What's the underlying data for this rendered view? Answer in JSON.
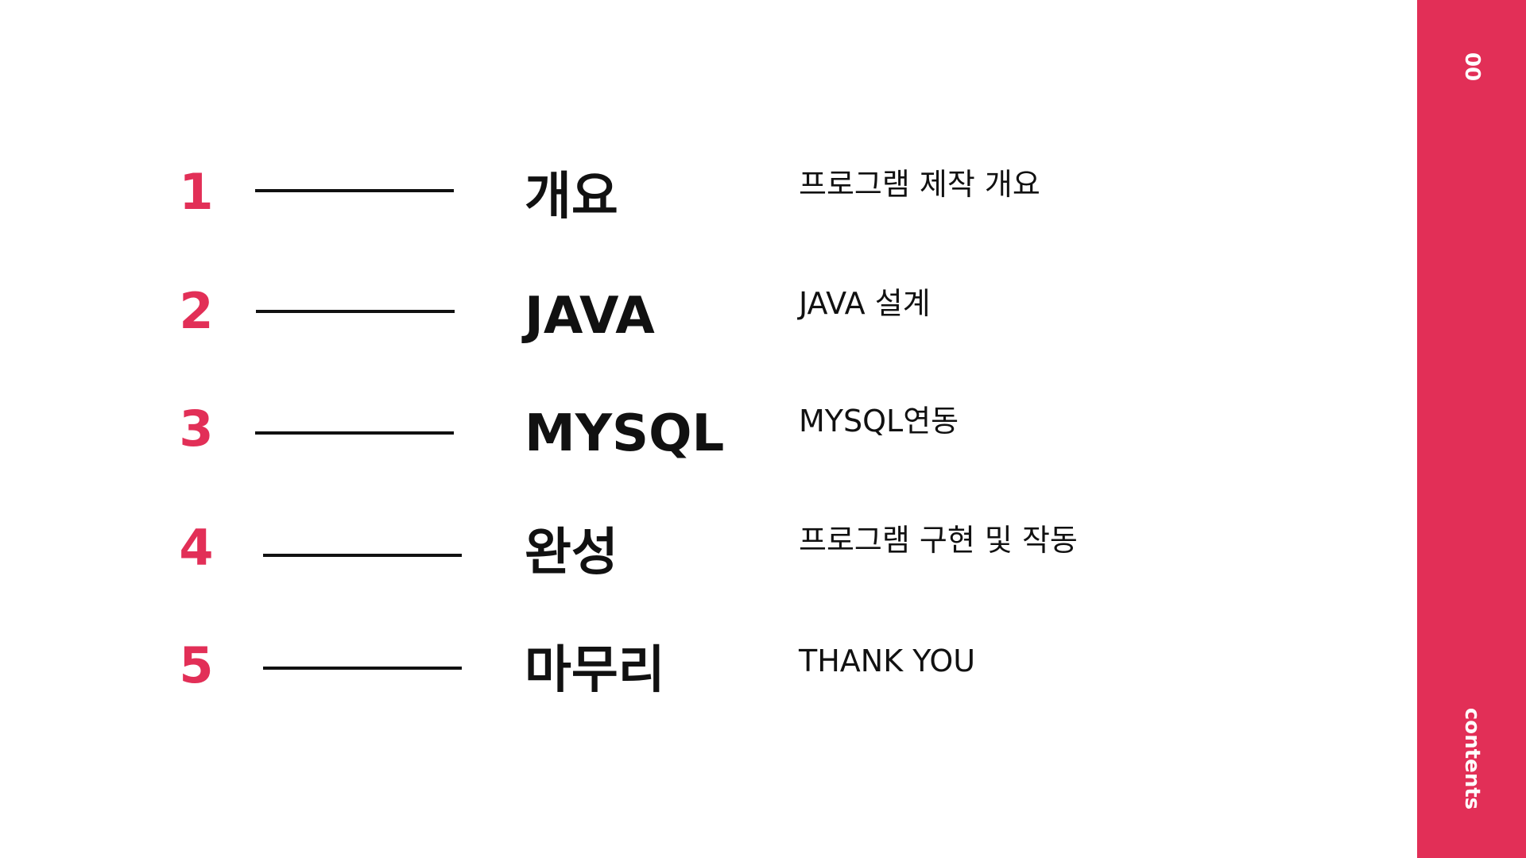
{
  "sidebar": {
    "page_number": "00",
    "section_label": "contents",
    "color": "#e22f57"
  },
  "accent_color": "#e22f57",
  "items": [
    {
      "number": "1",
      "title": "개요",
      "description": "프로그램 제작 개요"
    },
    {
      "number": "2",
      "title": "JAVA",
      "description": "JAVA 설계"
    },
    {
      "number": "3",
      "title": "MYSQL",
      "description": "MYSQL연동"
    },
    {
      "number": "4",
      "title": "완성",
      "description": "프로그램 구현 및 작동"
    },
    {
      "number": "5",
      "title": "마무리",
      "description": "THANK YOU"
    }
  ]
}
